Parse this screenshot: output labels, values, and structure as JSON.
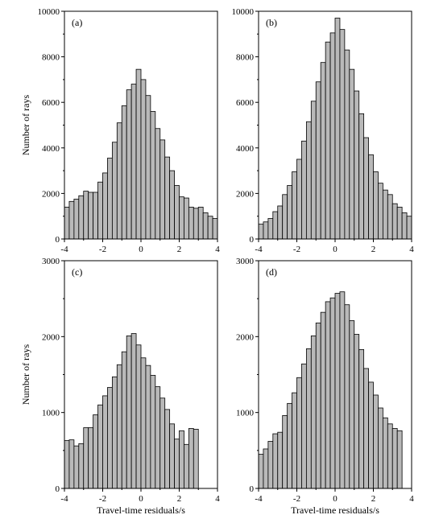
{
  "figure": {
    "xlabel": "Travel-time residuals/s",
    "ylabel": "Number of rays"
  },
  "colors": {
    "bar_fill": "#b9b9b9",
    "bar_stroke": "#000000",
    "frame": "#000000"
  },
  "chart_data": [
    {
      "type": "bar",
      "panel_label": "(a)",
      "xlabel": "",
      "ylabel": "Number of rays",
      "xlim": [
        -4,
        4
      ],
      "ylim": [
        0,
        10000
      ],
      "xticks": [
        -4,
        -2,
        0,
        2,
        4
      ],
      "yticks": [
        0,
        2000,
        4000,
        6000,
        8000,
        10000
      ],
      "bin_width": 0.25,
      "bin_start": -4,
      "values": [
        1400,
        1650,
        1750,
        1900,
        2100,
        2050,
        2050,
        2500,
        2900,
        3550,
        4250,
        5100,
        5850,
        6550,
        6800,
        7450,
        7000,
        6300,
        5600,
        4850,
        4350,
        3600,
        3000,
        2350,
        1850,
        1800,
        1400,
        1350,
        1400,
        1150,
        1000,
        900
      ]
    },
    {
      "type": "bar",
      "panel_label": "(b)",
      "xlabel": "",
      "ylabel": "",
      "xlim": [
        -4,
        4
      ],
      "ylim": [
        0,
        10000
      ],
      "xticks": [
        -4,
        -2,
        0,
        2,
        4
      ],
      "yticks": [
        0,
        2000,
        4000,
        6000,
        8000,
        10000
      ],
      "bin_width": 0.25,
      "bin_start": -4,
      "values": [
        650,
        750,
        900,
        1200,
        1450,
        1950,
        2350,
        2950,
        3500,
        4300,
        5150,
        6050,
        6900,
        7750,
        8650,
        9050,
        9700,
        9200,
        8300,
        7450,
        6500,
        5500,
        4450,
        3700,
        2950,
        2450,
        2150,
        1950,
        1550,
        1400,
        1150,
        1000
      ]
    },
    {
      "type": "bar",
      "panel_label": "(c)",
      "xlabel": "Travel-time residuals/s",
      "ylabel": "Number of rays",
      "xlim": [
        -4,
        4
      ],
      "ylim": [
        0,
        3000
      ],
      "xticks": [
        -4,
        -2,
        0,
        2,
        4
      ],
      "yticks": [
        0,
        1000,
        2000,
        3000
      ],
      "bin_width": 0.25,
      "bin_start": -4,
      "values": [
        630,
        640,
        560,
        590,
        800,
        800,
        970,
        1100,
        1220,
        1330,
        1470,
        1630,
        1800,
        2010,
        2040,
        1890,
        1720,
        1620,
        1490,
        1340,
        1190,
        1040,
        850,
        650,
        760,
        580,
        790,
        780
      ]
    },
    {
      "type": "bar",
      "panel_label": "(d)",
      "xlabel": "Travel-time residuals/s",
      "ylabel": "",
      "xlim": [
        -4,
        4
      ],
      "ylim": [
        0,
        3000
      ],
      "xticks": [
        -4,
        -2,
        0,
        2,
        4
      ],
      "yticks": [
        0,
        1000,
        2000,
        3000
      ],
      "bin_width": 0.25,
      "bin_start": -4,
      "values": [
        450,
        520,
        620,
        720,
        740,
        960,
        1120,
        1260,
        1460,
        1640,
        1840,
        2010,
        2180,
        2320,
        2460,
        2510,
        2570,
        2590,
        2420,
        2210,
        2030,
        1830,
        1580,
        1400,
        1230,
        1060,
        930,
        850,
        790,
        760
      ]
    }
  ]
}
